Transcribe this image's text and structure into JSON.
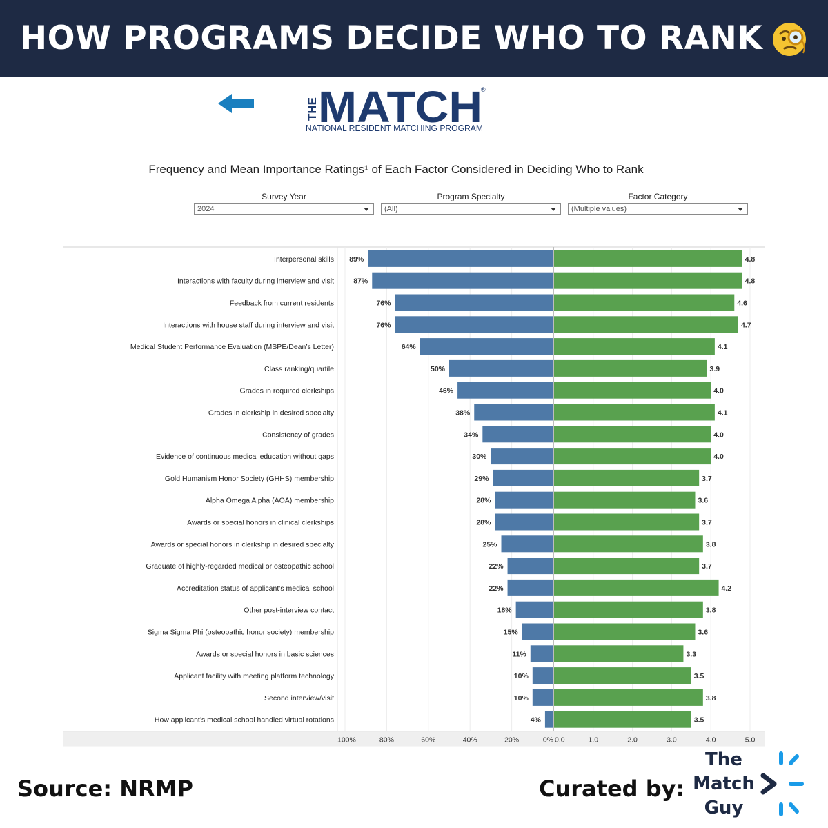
{
  "banner": {
    "title": "HOW PROGRAMS DECIDE WHO TO RANK",
    "emoji_icon": "face-with-monocle-icon"
  },
  "logo": {
    "the": "THE",
    "match": "MATCH",
    "subtitle": "NATIONAL RESIDENT MATCHING PROGRAM",
    "registered": "®",
    "arrow_icon": "left-arrow-icon"
  },
  "filters": [
    {
      "label": "Survey Year",
      "value": "2024"
    },
    {
      "label": "Program Specialty",
      "value": "(All)"
    },
    {
      "label": "Factor Category",
      "value": "(Multiple values)"
    }
  ],
  "footer": {
    "source": "Source: NRMP",
    "curated_label": "Curated by:",
    "brand_lines": [
      "The",
      "Match",
      "Guy"
    ],
    "brand_icon": "sparkle-arrow-icon"
  },
  "colors": {
    "banner": "#1e2a44",
    "frequency_bar": "#4e79a7",
    "importance_bar": "#59a14f",
    "brand_blue": "#1a9be8"
  },
  "chart_data": {
    "type": "bar",
    "title": "Frequency and Mean Importance Ratings¹ of Each Factor Considered in Deciding Who to Rank",
    "categories": [
      "Interpersonal skills",
      "Interactions with faculty during interview and visit",
      "Feedback from current residents",
      "Interactions with house staff during interview and visit",
      "Medical Student Performance Evaluation (MSPE/Dean’s Letter)",
      "Class ranking/quartile",
      "Grades in required clerkships",
      "Grades in clerkship in desired specialty",
      "Consistency of grades",
      "Evidence of continuous medical education without gaps",
      "Gold Humanism Honor Society (GHHS) membership",
      "Alpha Omega Alpha (AOA) membership",
      "Awards or special honors in clinical clerkships",
      "Awards or special honors in clerkship in desired specialty",
      "Graduate of highly-regarded medical or osteopathic school",
      "Accreditation status of applicant’s medical school",
      "Other post-interview contact",
      "Sigma Sigma Phi (osteopathic honor society) membership",
      "Awards or special honors in basic sciences",
      "Applicant facility with meeting platform technology",
      "Second interview/visit",
      "How applicant’s medical school handled virtual rotations"
    ],
    "series": [
      {
        "name": "Frequency",
        "values": [
          89,
          87,
          76,
          76,
          64,
          50,
          46,
          38,
          34,
          30,
          29,
          28,
          28,
          25,
          22,
          22,
          18,
          15,
          11,
          10,
          10,
          4
        ],
        "labels": [
          "89%",
          "87%",
          "76%",
          "76%",
          "64%",
          "50%",
          "46%",
          "38%",
          "34%",
          "30%",
          "29%",
          "28%",
          "28%",
          "25%",
          "22%",
          "22%",
          "18%",
          "15%",
          "11%",
          "10%",
          "10%",
          "4%"
        ],
        "axis_ticks": [
          "100%",
          "80%",
          "60%",
          "40%",
          "20%",
          "0%"
        ],
        "range": [
          0,
          100
        ]
      },
      {
        "name": "Mean Importance Rating",
        "values": [
          4.8,
          4.8,
          4.6,
          4.7,
          4.1,
          3.9,
          4.0,
          4.1,
          4.0,
          4.0,
          3.7,
          3.6,
          3.7,
          3.8,
          3.7,
          4.2,
          3.8,
          3.6,
          3.3,
          3.5,
          3.8,
          3.5
        ],
        "labels": [
          "4.8",
          "4.8",
          "4.6",
          "4.7",
          "4.1",
          "3.9",
          "4.0",
          "4.1",
          "4.0",
          "4.0",
          "3.7",
          "3.6",
          "3.7",
          "3.8",
          "3.7",
          "4.2",
          "3.8",
          "3.6",
          "3.3",
          "3.5",
          "3.8",
          "3.5"
        ],
        "axis_ticks": [
          "0.0",
          "1.0",
          "2.0",
          "3.0",
          "4.0",
          "5.0"
        ],
        "range": [
          0,
          5
        ]
      }
    ],
    "xlabel": "",
    "ylabel": ""
  }
}
